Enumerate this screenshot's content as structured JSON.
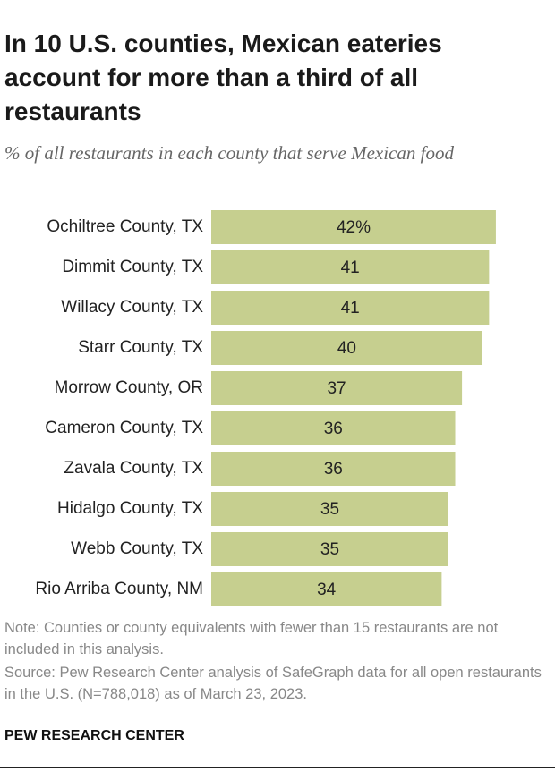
{
  "chart_data": {
    "type": "bar",
    "orientation": "horizontal",
    "title": "In 10 U.S. counties, Mexican eateries account for more than a third of all restaurants",
    "subtitle": "% of all restaurants in each county that serve Mexican food",
    "categories": [
      "Ochiltree County, TX",
      "Dimmit County, TX",
      "Willacy County, TX",
      "Starr County, TX",
      "Morrow County, OR",
      "Cameron County, TX",
      "Zavala County, TX",
      "Hidalgo County, TX",
      "Webb County, TX",
      "Rio Arriba County, NM"
    ],
    "values": [
      42,
      41,
      41,
      40,
      37,
      36,
      36,
      35,
      35,
      34
    ],
    "value_labels": [
      "42%",
      "41",
      "41",
      "40",
      "37",
      "36",
      "36",
      "35",
      "35",
      "34"
    ],
    "color": "#c6cf8f",
    "note": "Note: Counties or county equivalents with fewer than 15 restaurants are not included in this analysis.",
    "source": "Source: Pew Research Center analysis of SafeGraph data for all open restaurants in the U.S. (N=788,018) as of March 23, 2023.",
    "footer": "PEW RESEARCH CENTER"
  }
}
